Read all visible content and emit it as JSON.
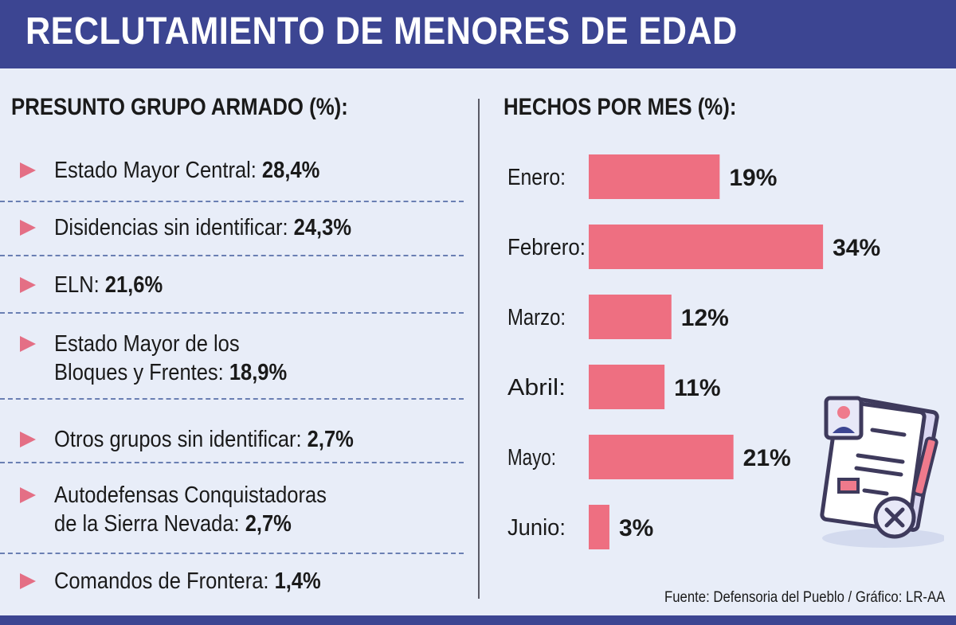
{
  "header": {
    "title": "RECLUTAMIENTO DE MENORES DE EDAD"
  },
  "left": {
    "title": "PRESUNTO GRUPO ARMADO (%):",
    "items": [
      {
        "lines": [
          "Estado Mayor Central:"
        ],
        "value": "28,4%"
      },
      {
        "lines": [
          "Disidencias sin identificar:"
        ],
        "value": "24,3%"
      },
      {
        "lines": [
          "ELN:"
        ],
        "value": "21,6%"
      },
      {
        "lines": [
          "Estado Mayor de los",
          "Bloques y Frentes:"
        ],
        "value": "18,9%"
      },
      {
        "lines": [
          "Otros grupos sin identificar:"
        ],
        "value": "2,7%"
      },
      {
        "lines": [
          "Autodefensas Conquistadoras",
          "de la Sierra Nevada:"
        ],
        "value": "2,7%"
      },
      {
        "lines": [
          "Comandos de Frontera:"
        ],
        "value": "1,4%"
      }
    ]
  },
  "chart_data": {
    "type": "bar",
    "orientation": "horizontal",
    "title": "HECHOS POR MES (%):",
    "categories": [
      "Enero:",
      "Febrero:",
      "Marzo:",
      "Abril:",
      "Mayo:",
      "Junio:"
    ],
    "values": [
      19,
      34,
      12,
      11,
      21,
      3
    ],
    "value_labels": [
      "19%",
      "34%",
      "12%",
      "11%",
      "21%",
      "3%"
    ],
    "bar_color": "#ee6f81"
  },
  "source": "Fuente: Defensoria del Pueblo / Gráfico: LR-AA",
  "icons": {
    "illustration": "clipboard-document-icon"
  },
  "colors": {
    "header": "#3c4592",
    "background": "#e8edf8",
    "arrow": "#e46f85"
  }
}
